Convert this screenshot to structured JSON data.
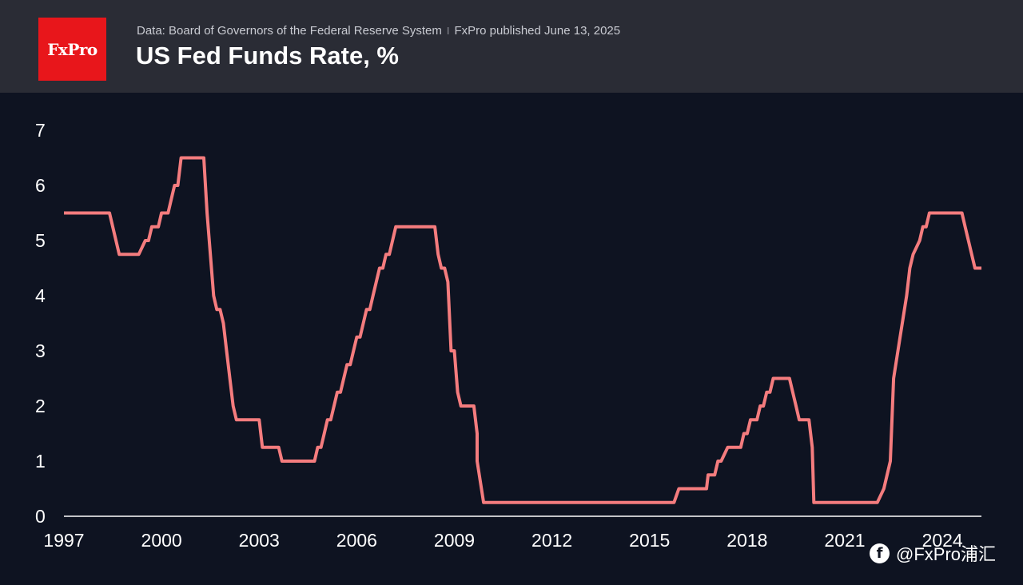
{
  "header": {
    "logo_text": "FxPro",
    "source": "Data: Board of Governors of the Federal Reserve System",
    "separator": "I",
    "published": "FxPro published June 13, 2025",
    "title": "US Fed Funds Rate, %"
  },
  "watermark": {
    "text": "@FxPro浦汇",
    "icon": "social-app-icon"
  },
  "colors": {
    "background": "#0e1321",
    "header": "#2a2c35",
    "line": "#f47c7e",
    "logo": "#e8161b"
  },
  "chart_data": {
    "type": "line",
    "title": "US Fed Funds Rate, %",
    "xlabel": "",
    "ylabel": "",
    "xlim": [
      1997.0,
      2025.2
    ],
    "ylim": [
      0,
      7
    ],
    "grid": false,
    "x_ticks": [
      "1997",
      "2000",
      "2003",
      "2006",
      "2009",
      "2012",
      "2015",
      "2018",
      "2021",
      "2024"
    ],
    "y_ticks": [
      "0",
      "1",
      "2",
      "3",
      "4",
      "5",
      "6",
      "7"
    ],
    "series": [
      {
        "color": "#f47c7e",
        "points": [
          [
            1997.0,
            5.5
          ],
          [
            1998.4,
            5.5
          ],
          [
            1998.7,
            4.75
          ],
          [
            1999.3,
            4.75
          ],
          [
            1999.5,
            5.0
          ],
          [
            1999.6,
            5.0
          ],
          [
            1999.7,
            5.25
          ],
          [
            1999.9,
            5.25
          ],
          [
            2000.0,
            5.5
          ],
          [
            2000.2,
            5.5
          ],
          [
            2000.3,
            5.75
          ],
          [
            2000.4,
            6.0
          ],
          [
            2000.5,
            6.0
          ],
          [
            2000.6,
            6.5
          ],
          [
            2001.3,
            6.5
          ],
          [
            2001.4,
            5.5
          ],
          [
            2001.6,
            4.0
          ],
          [
            2001.7,
            3.75
          ],
          [
            2001.8,
            3.75
          ],
          [
            2001.9,
            3.5
          ],
          [
            2002.0,
            3.0
          ],
          [
            2002.2,
            2.0
          ],
          [
            2002.3,
            1.75
          ],
          [
            2002.4,
            1.75
          ],
          [
            2003.0,
            1.75
          ],
          [
            2003.1,
            1.25
          ],
          [
            2003.6,
            1.25
          ],
          [
            2003.7,
            1.0
          ],
          [
            2004.7,
            1.0
          ],
          [
            2004.8,
            1.25
          ],
          [
            2004.9,
            1.25
          ],
          [
            2005.0,
            1.5
          ],
          [
            2005.1,
            1.75
          ],
          [
            2005.2,
            1.75
          ],
          [
            2005.4,
            2.25
          ],
          [
            2005.5,
            2.25
          ],
          [
            2005.6,
            2.5
          ],
          [
            2005.7,
            2.75
          ],
          [
            2005.8,
            2.75
          ],
          [
            2005.9,
            3.0
          ],
          [
            2006.0,
            3.25
          ],
          [
            2006.1,
            3.25
          ],
          [
            2006.3,
            3.75
          ],
          [
            2006.4,
            3.75
          ],
          [
            2006.5,
            4.0
          ],
          [
            2006.7,
            4.5
          ],
          [
            2006.8,
            4.5
          ],
          [
            2006.9,
            4.75
          ],
          [
            2007.0,
            4.75
          ],
          [
            2007.2,
            5.25
          ],
          [
            2008.4,
            5.25
          ],
          [
            2008.5,
            4.75
          ],
          [
            2008.6,
            4.5
          ],
          [
            2008.7,
            4.5
          ],
          [
            2008.8,
            4.25
          ],
          [
            2008.9,
            3.0
          ],
          [
            2009.0,
            3.0
          ],
          [
            2009.1,
            2.25
          ],
          [
            2009.2,
            2.0
          ],
          [
            2009.6,
            2.0
          ],
          [
            2009.7,
            1.5
          ],
          [
            2009.7,
            1.0
          ],
          [
            2009.9,
            0.25
          ],
          [
            2015.75,
            0.25
          ],
          [
            2015.9,
            0.5
          ],
          [
            2016.75,
            0.5
          ],
          [
            2016.8,
            0.75
          ],
          [
            2017.0,
            0.75
          ],
          [
            2017.1,
            1.0
          ],
          [
            2017.2,
            1.0
          ],
          [
            2017.4,
            1.25
          ],
          [
            2017.8,
            1.25
          ],
          [
            2017.9,
            1.5
          ],
          [
            2018.0,
            1.5
          ],
          [
            2018.1,
            1.75
          ],
          [
            2018.3,
            1.75
          ],
          [
            2018.4,
            2.0
          ],
          [
            2018.5,
            2.0
          ],
          [
            2018.6,
            2.25
          ],
          [
            2018.7,
            2.25
          ],
          [
            2018.8,
            2.5
          ],
          [
            2019.3,
            2.5
          ],
          [
            2019.4,
            2.25
          ],
          [
            2019.5,
            2.0
          ],
          [
            2019.6,
            1.75
          ],
          [
            2019.9,
            1.75
          ],
          [
            2020.0,
            1.25
          ],
          [
            2020.05,
            0.25
          ],
          [
            2022.0,
            0.25
          ],
          [
            2022.2,
            0.5
          ],
          [
            2022.4,
            1.0
          ],
          [
            2022.5,
            2.5
          ],
          [
            2022.7,
            3.25
          ],
          [
            2022.9,
            4.0
          ],
          [
            2023.0,
            4.5
          ],
          [
            2023.1,
            4.75
          ],
          [
            2023.3,
            5.0
          ],
          [
            2023.4,
            5.25
          ],
          [
            2023.5,
            5.25
          ],
          [
            2023.6,
            5.5
          ],
          [
            2024.6,
            5.5
          ],
          [
            2024.7,
            5.25
          ],
          [
            2024.8,
            5.0
          ],
          [
            2024.9,
            4.75
          ],
          [
            2025.0,
            4.5
          ],
          [
            2025.2,
            4.5
          ]
        ]
      }
    ]
  }
}
